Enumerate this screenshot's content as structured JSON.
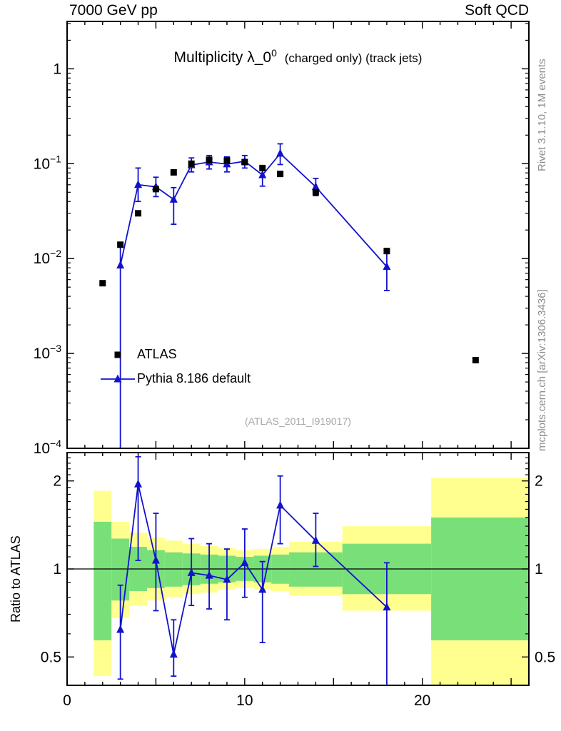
{
  "header": {
    "left": "7000 GeV pp",
    "right": "Soft QCD"
  },
  "side_texts": {
    "top": "Rivet 3.1.10, 1M events",
    "bottom": "mcplots.cern.ch [arXiv:1306.3436]"
  },
  "title": {
    "main": "Multiplicity λ_0",
    "sup": "0",
    "suffix": "(charged only) (track jets)"
  },
  "watermark": "(ATLAS_2011_I919017)",
  "ratio_axis_title": "Ratio to ATLAS",
  "legend": [
    {
      "label": "ATLAS",
      "marker": "square",
      "color": "#000000"
    },
    {
      "label": "Pythia 8.186 default",
      "marker": "triangle-line",
      "color": "#1212cc"
    }
  ],
  "colors": {
    "atlas": "#000000",
    "pythia": "#1212cc",
    "band_outer": "#ffff8f",
    "band_inner": "#79e079",
    "watermark": "#a8a8a8",
    "side_text": "#8c8c8c",
    "frame": "#000000"
  },
  "chart_data": {
    "type": "line",
    "title": "Multiplicity λ_0^0 (charged only) (track jets)",
    "xlabel": "",
    "ylabel": "",
    "x_axis": {
      "min": 0,
      "max": 26,
      "major_step": 5,
      "minor_step": 1,
      "labeled_ticks": [
        {
          "v": 0,
          "label": "0"
        },
        {
          "v": 10,
          "label": "10"
        },
        {
          "v": 20,
          "label": "20"
        }
      ]
    },
    "main_panel": {
      "yscale": "log",
      "ymin": 0.0001,
      "ymax": 3.16,
      "yticks": [
        {
          "v": 1,
          "label": "1"
        },
        {
          "v": 0.1,
          "base": "10",
          "exp": "−1"
        },
        {
          "v": 0.01,
          "base": "10",
          "exp": "−2"
        },
        {
          "v": 0.001,
          "base": "10",
          "exp": "−3"
        },
        {
          "v": 0.0001,
          "base": "10",
          "exp": "−4"
        }
      ],
      "series": [
        {
          "name": "ATLAS",
          "marker": "square",
          "color": "#000000",
          "points": [
            [
              2,
              0.0055
            ],
            [
              3,
              0.014
            ],
            [
              4,
              0.03
            ],
            [
              5,
              0.054
            ],
            [
              6,
              0.081
            ],
            [
              7,
              0.1
            ],
            [
              8,
              0.11
            ],
            [
              9,
              0.108
            ],
            [
              10,
              0.104
            ],
            [
              11,
              0.09
            ],
            [
              12,
              0.078
            ],
            [
              14,
              0.05
            ],
            [
              18,
              0.012
            ],
            [
              23,
              0.00085
            ]
          ]
        },
        {
          "name": "Pythia 8.186 default",
          "marker": "triangle",
          "line": true,
          "color": "#1212cc",
          "points": [
            {
              "x": 3,
              "y": 0.0085,
              "lo": 0.0001,
              "hi": 0.014
            },
            {
              "x": 4,
              "y": 0.06,
              "lo": 0.04,
              "hi": 0.09
            },
            {
              "x": 5,
              "y": 0.057,
              "lo": 0.045,
              "hi": 0.072
            },
            {
              "x": 6,
              "y": 0.042,
              "lo": 0.023,
              "hi": 0.056
            },
            {
              "x": 7,
              "y": 0.097,
              "lo": 0.082,
              "hi": 0.115
            },
            {
              "x": 8,
              "y": 0.104,
              "lo": 0.088,
              "hi": 0.122
            },
            {
              "x": 9,
              "y": 0.099,
              "lo": 0.082,
              "hi": 0.118
            },
            {
              "x": 10,
              "y": 0.106,
              "lo": 0.09,
              "hi": 0.122
            },
            {
              "x": 11,
              "y": 0.076,
              "lo": 0.058,
              "hi": 0.094
            },
            {
              "x": 12,
              "y": 0.128,
              "lo": 0.098,
              "hi": 0.162
            },
            {
              "x": 14,
              "y": 0.057,
              "lo": 0.046,
              "hi": 0.07
            },
            {
              "x": 18,
              "y": 0.0082,
              "lo": 0.0046,
              "hi": 0.0118
            }
          ]
        }
      ]
    },
    "ratio_panel": {
      "yscale": "log",
      "ymin": 0.4,
      "ymax": 2.5,
      "reference_y": 1,
      "yticks": [
        {
          "v": 0.5,
          "label": "0.5"
        },
        {
          "v": 1,
          "label": "1"
        },
        {
          "v": 2,
          "label": "2"
        }
      ],
      "minor_ticks": [
        0.4,
        0.6,
        0.7,
        0.8,
        0.9,
        1.1,
        1.2,
        1.3,
        1.4,
        1.5,
        1.6,
        1.7,
        1.8,
        1.9,
        2.1,
        2.2,
        2.3,
        2.4
      ],
      "bands": [
        {
          "xlo": 1.5,
          "xhi": 2.5,
          "outer": [
            0.43,
            1.85
          ],
          "inner": [
            0.57,
            1.45
          ]
        },
        {
          "xlo": 2.5,
          "xhi": 3.5,
          "outer": [
            0.68,
            1.45
          ],
          "inner": [
            0.78,
            1.27
          ]
        },
        {
          "xlo": 3.5,
          "xhi": 4.5,
          "outer": [
            0.75,
            1.33
          ],
          "inner": [
            0.84,
            1.19
          ]
        },
        {
          "xlo": 4.5,
          "xhi": 5.5,
          "outer": [
            0.78,
            1.28
          ],
          "inner": [
            0.86,
            1.16
          ]
        },
        {
          "xlo": 5.5,
          "xhi": 6.5,
          "outer": [
            0.8,
            1.25
          ],
          "inner": [
            0.87,
            1.14
          ]
        },
        {
          "xlo": 6.5,
          "xhi": 7.5,
          "outer": [
            0.82,
            1.22
          ],
          "inner": [
            0.88,
            1.13
          ]
        },
        {
          "xlo": 7.5,
          "xhi": 8.5,
          "outer": [
            0.83,
            1.2
          ],
          "inner": [
            0.89,
            1.12
          ]
        },
        {
          "xlo": 8.5,
          "xhi": 9.5,
          "outer": [
            0.85,
            1.18
          ],
          "inner": [
            0.9,
            1.11
          ]
        },
        {
          "xlo": 9.5,
          "xhi": 10.5,
          "outer": [
            0.86,
            1.16
          ],
          "inner": [
            0.91,
            1.1
          ]
        },
        {
          "xlo": 10.5,
          "xhi": 11.5,
          "outer": [
            0.85,
            1.17
          ],
          "inner": [
            0.9,
            1.11
          ]
        },
        {
          "xlo": 11.5,
          "xhi": 12.5,
          "outer": [
            0.84,
            1.19
          ],
          "inner": [
            0.89,
            1.12
          ]
        },
        {
          "xlo": 12.5,
          "xhi": 15.5,
          "outer": [
            0.81,
            1.24
          ],
          "inner": [
            0.87,
            1.14
          ]
        },
        {
          "xlo": 15.5,
          "xhi": 20.5,
          "outer": [
            0.72,
            1.4
          ],
          "inner": [
            0.82,
            1.22
          ]
        },
        {
          "xlo": 20.5,
          "xhi": 26.0,
          "outer": [
            0.4,
            2.05
          ],
          "inner": [
            0.57,
            1.5
          ]
        }
      ],
      "points": [
        {
          "x": 3,
          "y": 0.62,
          "lo": 0.42,
          "hi": 0.88
        },
        {
          "x": 4,
          "y": 1.95,
          "lo": 1.07,
          "hi": 2.42
        },
        {
          "x": 5,
          "y": 1.07,
          "lo": 0.72,
          "hi": 1.55
        },
        {
          "x": 6,
          "y": 0.51,
          "lo": 0.43,
          "hi": 0.67
        },
        {
          "x": 7,
          "y": 0.97,
          "lo": 0.75,
          "hi": 1.27
        },
        {
          "x": 8,
          "y": 0.95,
          "lo": 0.73,
          "hi": 1.22
        },
        {
          "x": 9,
          "y": 0.92,
          "lo": 0.67,
          "hi": 1.17
        },
        {
          "x": 10,
          "y": 1.05,
          "lo": 0.8,
          "hi": 1.37
        },
        {
          "x": 11,
          "y": 0.85,
          "lo": 0.56,
          "hi": 1.06
        },
        {
          "x": 12,
          "y": 1.65,
          "lo": 1.22,
          "hi": 2.08
        },
        {
          "x": 14,
          "y": 1.25,
          "lo": 1.02,
          "hi": 1.55
        },
        {
          "x": 18,
          "y": 0.74,
          "lo": 0.36,
          "hi": 1.05
        }
      ]
    }
  }
}
